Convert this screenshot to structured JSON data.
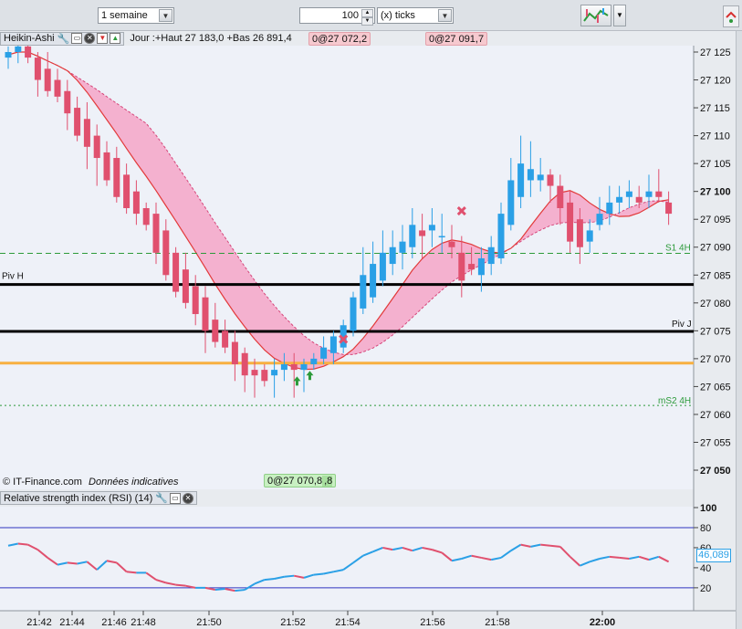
{
  "toolbar": {
    "period_value": "1 semaine",
    "units_value": "100",
    "units_type": "(x) ticks"
  },
  "chart": {
    "indicator_name": "Heikin-Ashi",
    "info_text": "Jour :+Haut 27 183,0 +Bas 26 891,4",
    "tag_left": "0@27 072,2",
    "tag_right": "0@27 091,7",
    "tag_bottom": "0@27 070,8",
    "tag_bottom_extra": ",8",
    "footer_brand": "© IT-Finance.com",
    "footer_note": "Données indicatives",
    "line_labels": [
      "S1 4H",
      "Piv H",
      "Piv J",
      "mS2 4H"
    ],
    "colors": {
      "up": "#2aa0e6",
      "down": "#e0506e",
      "cloud": "#f4a6c8",
      "piv": "#000000",
      "orange": "#f7b041",
      "green": "#2c9a3a"
    }
  },
  "rsi": {
    "title": "Relative strength index (RSI) (14)",
    "current_value": "46,089",
    "levels": [
      80,
      20
    ]
  },
  "chart_data": [
    {
      "type": "candlestick",
      "title": "Heikin-Ashi",
      "ylim": [
        27045,
        27130
      ],
      "yticks": [
        "27 125",
        "27 120",
        "27 115",
        "27 110",
        "27 105",
        "27 100",
        "27 095",
        "27 090",
        "27 085",
        "27 080",
        "27 075",
        "27 070",
        "27 065",
        "27 060",
        "27 055",
        "27 050"
      ],
      "bold_ticks": [
        "27 100",
        "27 050"
      ],
      "xticks": [
        "21:42",
        "21:44",
        "21:46",
        "21:48",
        "21:50",
        "21:52",
        "21:54",
        "21:56",
        "21:58",
        "22:00"
      ],
      "hlines": [
        {
          "label": "S1 4H",
          "value": 27088.9,
          "style": "green-dashed"
        },
        {
          "label": "Piv H",
          "value": 27083.3,
          "style": "black-thick"
        },
        {
          "label": "Piv J",
          "value": 27074.9,
          "style": "black-thick"
        },
        {
          "label": "",
          "value": 27069.2,
          "style": "orange"
        },
        {
          "label": "mS2 4H",
          "value": 27061.6,
          "style": "green-dotted"
        }
      ],
      "candles": [
        [
          27124,
          27126,
          27122,
          27125
        ],
        [
          27125,
          27127,
          27123,
          27126
        ],
        [
          27126,
          27128,
          27123,
          27124
        ],
        [
          27124,
          27125,
          27117,
          27120
        ],
        [
          27122,
          27125,
          27117,
          27118
        ],
        [
          27120,
          27122,
          27116,
          27117
        ],
        [
          27118,
          27120,
          27111,
          27114
        ],
        [
          27115,
          27117,
          27109,
          27110
        ],
        [
          27113,
          27116,
          27104,
          27108
        ],
        [
          27110,
          27112,
          27101,
          27106
        ],
        [
          27107,
          27109,
          27101,
          27102
        ],
        [
          27106,
          27108,
          27098,
          27099
        ],
        [
          27103,
          27105,
          27096,
          27097
        ],
        [
          27100,
          27102,
          27094,
          27096
        ],
        [
          27097,
          27098,
          27093,
          27094
        ],
        [
          27096,
          27098,
          27087,
          27089
        ],
        [
          27093,
          27095,
          27084,
          27085
        ],
        [
          27089,
          27090,
          27081,
          27082
        ],
        [
          27086,
          27089,
          27079,
          27080
        ],
        [
          27083,
          27085,
          27076,
          27078
        ],
        [
          27081,
          27083,
          27071,
          27075
        ],
        [
          27077,
          27080,
          27072,
          27073
        ],
        [
          27075,
          27077,
          27071,
          27072
        ],
        [
          27073,
          27075,
          27066,
          27069
        ],
        [
          27071,
          27072,
          27064,
          27067
        ],
        [
          27068,
          27070,
          27063,
          27067
        ],
        [
          27068,
          27069,
          27065,
          27066
        ],
        [
          27067,
          27070,
          27063,
          27068
        ],
        [
          27068,
          27071,
          27066,
          27069
        ],
        [
          27069,
          27071,
          27063,
          27068
        ],
        [
          27068,
          27070,
          27064,
          27069
        ],
        [
          27069,
          27071,
          27068,
          27070
        ],
        [
          27070,
          27074,
          27069,
          27072
        ],
        [
          27071,
          27075,
          27069,
          27074
        ],
        [
          27072,
          27077,
          27071,
          27076
        ],
        [
          27075,
          27082,
          27074,
          27081
        ],
        [
          27079,
          27090,
          27078,
          27085
        ],
        [
          27081,
          27091,
          27080,
          27087
        ],
        [
          27084,
          27093,
          27083,
          27089
        ],
        [
          27087,
          27093,
          27085,
          27090
        ],
        [
          27089,
          27094,
          27086,
          27091
        ],
        [
          27090,
          27097,
          27088,
          27094
        ],
        [
          27093,
          27096,
          27088,
          27092
        ],
        [
          27093,
          27097,
          27090,
          27094
        ],
        [
          27092,
          27096,
          27089,
          27092
        ],
        [
          27091,
          27094,
          27088,
          27090
        ],
        [
          27089,
          27092,
          27081,
          27084
        ],
        [
          27087,
          27090,
          27085,
          27086
        ],
        [
          27085,
          27090,
          27082,
          27088
        ],
        [
          27087,
          27092,
          27085,
          27090
        ],
        [
          27088,
          27098,
          27087,
          27096
        ],
        [
          27094,
          27106,
          27093,
          27102
        ],
        [
          27099,
          27110,
          27097,
          27105
        ],
        [
          27102,
          27109,
          27099,
          27104
        ],
        [
          27102,
          27106,
          27100,
          27103
        ],
        [
          27103,
          27104,
          27098,
          27101
        ],
        [
          27101,
          27103,
          27094,
          27097
        ],
        [
          27098,
          27100,
          27089,
          27091
        ],
        [
          27095,
          27097,
          27087,
          27090
        ],
        [
          27091,
          27095,
          27089,
          27093
        ],
        [
          27094,
          27099,
          27093,
          27096
        ],
        [
          27096,
          27101,
          27094,
          27098
        ],
        [
          27098,
          27101,
          27096,
          27099
        ],
        [
          27099,
          27102,
          27097,
          27100
        ],
        [
          27099,
          27101,
          27097,
          27098
        ],
        [
          27099,
          27103,
          27097,
          27100
        ],
        [
          27100,
          27104,
          27098,
          27099
        ],
        [
          27098,
          27100,
          27094,
          27096
        ]
      ]
    },
    {
      "type": "line",
      "title": "Relative strength index (RSI) (14)",
      "ylim": [
        0,
        100
      ],
      "yticks": [
        "100",
        "80",
        "60",
        "40",
        "20"
      ],
      "levels": [
        80,
        20
      ],
      "series": [
        {
          "name": "RSI",
          "values": [
            62,
            64,
            63,
            58,
            50,
            43,
            45,
            44,
            46,
            38,
            47,
            45,
            36,
            35,
            35,
            28,
            25,
            23,
            22,
            20,
            20,
            18,
            19,
            17,
            18,
            24,
            28,
            29,
            31,
            32,
            30,
            33,
            34,
            36,
            38,
            45,
            52,
            56,
            60,
            58,
            60,
            57,
            60,
            58,
            55,
            47,
            49,
            52,
            50,
            48,
            50,
            57,
            63,
            61,
            63,
            62,
            61,
            51,
            42,
            46,
            49,
            51,
            50,
            49,
            51,
            48,
            51,
            46
          ]
        }
      ]
    }
  ]
}
